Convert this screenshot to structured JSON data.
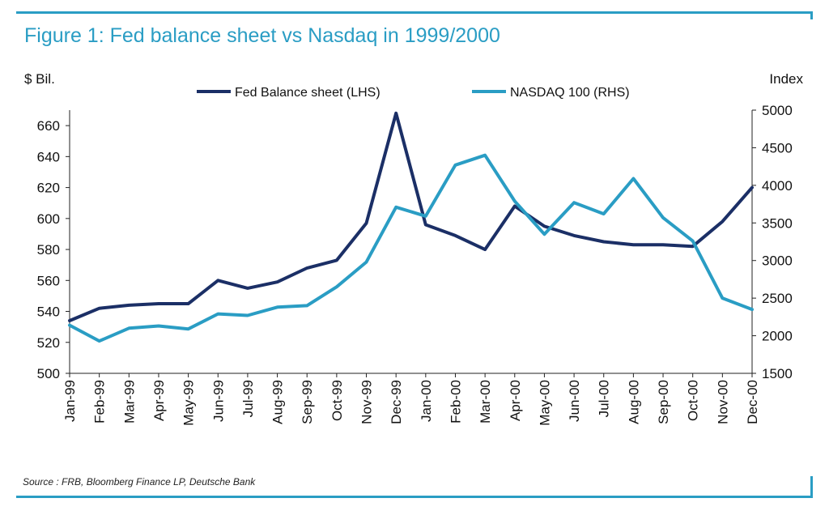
{
  "title": "Figure 1: Fed balance sheet vs Nasdaq in 1999/2000",
  "source": "Source : FRB, Bloomberg Finance LP, Deutsche Bank",
  "colors": {
    "accent": "#2a9dc4",
    "fed": "#1b2f66",
    "nasdaq": "#2a9dc4"
  },
  "chart_data": {
    "type": "line",
    "title": "Figure 1: Fed balance sheet vs Nasdaq in 1999/2000",
    "ylabel": "$ Bil.",
    "y2label": "Index",
    "categories": [
      "Jan-99",
      "Feb-99",
      "Mar-99",
      "Apr-99",
      "May-99",
      "Jun-99",
      "Jul-99",
      "Aug-99",
      "Sep-99",
      "Oct-99",
      "Nov-99",
      "Dec-99",
      "Jan-00",
      "Feb-00",
      "Mar-00",
      "Apr-00",
      "May-00",
      "Jun-00",
      "Jul-00",
      "Aug-00",
      "Sep-00",
      "Oct-00",
      "Nov-00",
      "Dec-00"
    ],
    "ylim": [
      500,
      670
    ],
    "y2lim": [
      1500,
      5000
    ],
    "yticks": [
      "500",
      "520",
      "540",
      "560",
      "580",
      "600",
      "620",
      "640",
      "660"
    ],
    "y2ticks": [
      "1500",
      "2000",
      "2500",
      "3000",
      "3500",
      "4000",
      "4500",
      "5000"
    ],
    "legend_position": "top",
    "grid": false,
    "series": [
      {
        "name": "Fed Balance sheet (LHS)",
        "axis": "left",
        "values": [
          534,
          542,
          544,
          545,
          545,
          560,
          555,
          559,
          568,
          573,
          597,
          668,
          596,
          589,
          580,
          608,
          595,
          589,
          585,
          583,
          583,
          582,
          598,
          620
        ]
      },
      {
        "name": "NASDAQ 100 (RHS)",
        "axis": "right",
        "values": [
          2140,
          1930,
          2100,
          2130,
          2090,
          2290,
          2270,
          2380,
          2400,
          2650,
          2980,
          3710,
          3590,
          4270,
          4400,
          3790,
          3350,
          3770,
          3620,
          4090,
          3570,
          3260,
          2500,
          2350
        ]
      }
    ]
  }
}
